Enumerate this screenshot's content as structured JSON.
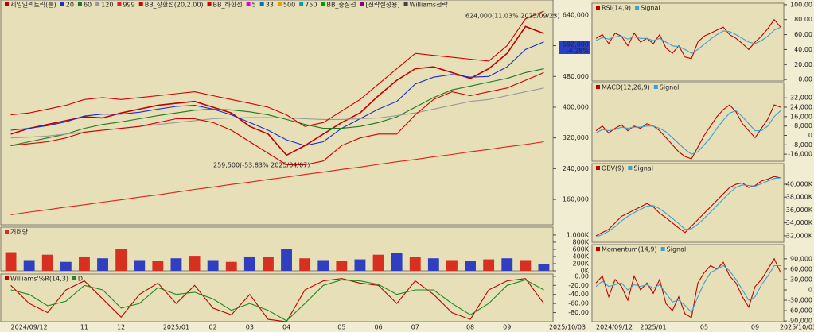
{
  "chart_data": [
    {
      "type": "line",
      "series": [
        {
          "name": "제일일렉트릭(틀)",
          "color": "#c00000",
          "values": [
            330000,
            345000,
            355000,
            365000,
            375000,
            372000,
            385000,
            395000,
            405000,
            410000,
            415000,
            400000,
            385000,
            350000,
            330000,
            275000,
            300000,
            330000,
            360000,
            385000,
            430000,
            470000,
            500000,
            505000,
            490000,
            475000,
            500000,
            540000,
            610000,
            592000
          ]
        },
        {
          "name": "20",
          "color": "#1a2fc8",
          "values": [
            340000,
            345000,
            352000,
            362000,
            377000,
            382000,
            382000,
            387000,
            395000,
            402000,
            405000,
            395000,
            380000,
            360000,
            340000,
            315000,
            300000,
            310000,
            345000,
            370000,
            395000,
            415000,
            460000,
            478000,
            485000,
            478000,
            480000,
            505000,
            550000,
            570000
          ]
        },
        {
          "name": "60",
          "color": "#1f7a1f",
          "values": [
            300000,
            310000,
            320000,
            330000,
            345000,
            355000,
            362000,
            370000,
            378000,
            385000,
            392000,
            395000,
            393000,
            388000,
            380000,
            368000,
            355000,
            345000,
            345000,
            350000,
            360000,
            375000,
            400000,
            425000,
            445000,
            455000,
            465000,
            475000,
            490000,
            500000
          ]
        },
        {
          "name": "120",
          "color": "#9a9a9a",
          "values": [
            320000,
            322000,
            325000,
            330000,
            335000,
            340000,
            345000,
            350000,
            355000,
            360000,
            365000,
            370000,
            372000,
            373000,
            373000,
            372000,
            370000,
            368000,
            368000,
            370000,
            372000,
            378000,
            385000,
            395000,
            405000,
            415000,
            420000,
            430000,
            440000,
            450000
          ]
        },
        {
          "name": "999",
          "color": "#e02020",
          "values": [
            120000,
            127000,
            133000,
            140000,
            146000,
            153000,
            159000,
            166000,
            172000,
            179000,
            186000,
            192000,
            199000,
            205000,
            212000,
            218000,
            225000,
            231000,
            238000,
            244000,
            251000,
            258000,
            264000,
            271000,
            277000,
            284000,
            290000,
            297000,
            303000,
            310000
          ]
        },
        {
          "name": "BB_상한선(20,2.00)",
          "color": "#d00000",
          "values": [
            380000,
            385000,
            395000,
            405000,
            420000,
            425000,
            420000,
            425000,
            430000,
            435000,
            440000,
            430000,
            420000,
            410000,
            400000,
            380000,
            350000,
            360000,
            390000,
            420000,
            460000,
            500000,
            540000,
            535000,
            530000,
            525000,
            520000,
            560000,
            630000,
            650000
          ]
        },
        {
          "name": "BB_하한선",
          "color": "#d00000",
          "values": [
            300000,
            305000,
            310000,
            320000,
            335000,
            340000,
            345000,
            350000,
            360000,
            370000,
            370000,
            360000,
            340000,
            310000,
            280000,
            250000,
            250000,
            260000,
            300000,
            320000,
            330000,
            330000,
            380000,
            420000,
            440000,
            430000,
            440000,
            450000,
            470000,
            490000
          ]
        }
      ],
      "legend_extra": [
        {
          "name": "5",
          "color": "#e000e0"
        },
        {
          "name": "33",
          "color": "#0070c0"
        },
        {
          "name": "500",
          "color": "#e0a000"
        },
        {
          "name": "750",
          "color": "#00a0a0"
        },
        {
          "name": "BB_중심선",
          "color": "#00a000"
        },
        {
          "name": "[전략설정용]",
          "color": "#800080"
        },
        {
          "name": "Williams전략",
          "color": "#404040"
        }
      ],
      "annotations": [
        "624,000(11.03% 2025/09/23)",
        "259,500(-53.83% 2025/04/07)"
      ],
      "price_box": [
        "592,000",
        "-4.28%"
      ],
      "ylim": [
        94000,
        679000
      ],
      "yticks": [
        {
          "value": 160000,
          "label": "160,000"
        },
        {
          "value": 240000,
          "label": "240,000"
        },
        {
          "value": 320000,
          "label": "320,000"
        },
        {
          "value": 400000,
          "label": "400,000"
        },
        {
          "value": 480000,
          "label": "480,000"
        },
        {
          "value": 560000,
          "label": "560,000"
        },
        {
          "value": 640000,
          "label": "640,000"
        }
      ]
    },
    {
      "type": "bar",
      "series": [
        {
          "name": "거래량",
          "color": "#d83020",
          "values": [
            520,
            300,
            450,
            250,
            400,
            350,
            600,
            300,
            280,
            350,
            420,
            300,
            250,
            400,
            380,
            600,
            350,
            300,
            280,
            320,
            450,
            500,
            380,
            350,
            300,
            280,
            320,
            350,
            300,
            200
          ]
        }
      ],
      "ylim": [
        0,
        1220
      ],
      "yticks": [
        {
          "value": 0,
          "label": "0K"
        },
        {
          "value": 200,
          "label": "200K"
        },
        {
          "value": 400,
          "label": "400K"
        },
        {
          "value": 600,
          "label": "600K"
        },
        {
          "value": 800,
          "label": "800K"
        },
        {
          "value": 1000,
          "label": "1,000K"
        }
      ]
    },
    {
      "type": "line",
      "series": [
        {
          "name": "Williams'%R(14,3)",
          "color": "#c00000",
          "values": [
            -20,
            -60,
            -80,
            -30,
            -10,
            -50,
            -90,
            -40,
            -15,
            -60,
            -20,
            -70,
            -85,
            -40,
            -95,
            -100,
            -30,
            -10,
            -5,
            -15,
            -20,
            -60,
            -10,
            -40,
            -80,
            -95,
            -30,
            -10,
            -5,
            -60
          ]
        },
        {
          "name": "D",
          "color": "#1f8a1f",
          "values": [
            -30,
            -40,
            -65,
            -55,
            -20,
            -30,
            -70,
            -60,
            -25,
            -40,
            -35,
            -50,
            -75,
            -60,
            -75,
            -98,
            -60,
            -20,
            -8,
            -10,
            -18,
            -40,
            -30,
            -30,
            -60,
            -85,
            -60,
            -20,
            -8,
            -30
          ]
        }
      ],
      "categories": [
        "2024/09/12",
        null,
        null,
        null,
        "11",
        null,
        "12",
        null,
        null,
        "2025/01",
        null,
        "02",
        null,
        "03",
        null,
        "04",
        null,
        null,
        "05",
        null,
        "06",
        null,
        "07",
        null,
        null,
        "08",
        null,
        "09",
        null,
        "2025/10/03"
      ],
      "ylim": [
        -100,
        5
      ],
      "yticks": [
        {
          "value": -80,
          "label": "-80.00"
        },
        {
          "value": -60,
          "label": "-60.00"
        },
        {
          "value": -40,
          "label": "-40.00"
        },
        {
          "value": -20,
          "label": "-20.00"
        },
        {
          "value": 0,
          "label": "0.00"
        }
      ]
    },
    {
      "type": "line",
      "series": [
        {
          "name": "RSI(14,9)",
          "color": "#c00000",
          "values": [
            55,
            60,
            48,
            62,
            58,
            45,
            62,
            50,
            55,
            48,
            60,
            42,
            35,
            45,
            30,
            28,
            50,
            58,
            62,
            66,
            70,
            60,
            55,
            48,
            40,
            50,
            58,
            68,
            80,
            70
          ]
        },
        {
          "name": "Signal",
          "color": "#3aa0d0",
          "values": [
            52,
            56,
            54,
            57,
            58,
            54,
            57,
            55,
            55,
            52,
            55,
            50,
            45,
            44,
            40,
            35,
            40,
            47,
            54,
            60,
            65,
            64,
            60,
            55,
            50,
            48,
            52,
            58,
            66,
            70
          ]
        }
      ],
      "ylim": [
        -2,
        102
      ],
      "yticks": [
        {
          "value": 0,
          "label": "0.00"
        },
        {
          "value": 20,
          "label": "20.00"
        },
        {
          "value": 40,
          "label": "40.00"
        },
        {
          "value": 60,
          "label": "60.00"
        },
        {
          "value": 80,
          "label": "80.00"
        },
        {
          "value": 100,
          "label": "100.00"
        }
      ]
    },
    {
      "type": "line",
      "series": [
        {
          "name": "MACD(12,26,9)",
          "color": "#c00000",
          "values": [
            4000,
            8000,
            2000,
            6000,
            9000,
            4000,
            8000,
            6000,
            10000,
            8000,
            4000,
            -2000,
            -8000,
            -14000,
            -18000,
            -20000,
            -10000,
            0,
            8000,
            16000,
            22000,
            26000,
            20000,
            10000,
            4000,
            -2000,
            6000,
            14000,
            26000,
            24000
          ]
        },
        {
          "name": "Signal",
          "color": "#3aa0d0",
          "values": [
            2000,
            5000,
            4000,
            5000,
            7000,
            6000,
            7000,
            7000,
            8000,
            8000,
            6000,
            3000,
            -2000,
            -7000,
            -12000,
            -16000,
            -14000,
            -8000,
            -2000,
            6000,
            13000,
            19000,
            21000,
            16000,
            10000,
            4000,
            4000,
            8000,
            16000,
            21000
          ]
        }
      ],
      "ylim": [
        -22000,
        45000
      ],
      "yticks": [
        {
          "value": -16000,
          "label": "-16,000"
        },
        {
          "value": -8000,
          "label": "-8,000"
        },
        0,
        {
          "value": 8000,
          "label": "8,000"
        },
        {
          "value": 16000,
          "label": "16,000"
        },
        {
          "value": 24000,
          "label": "24,000"
        },
        {
          "value": 32000,
          "label": "32,000"
        }
      ]
    },
    {
      "type": "line",
      "series": [
        {
          "name": "OBV(9)",
          "color": "#c00000",
          "values": [
            32000,
            32500,
            33000,
            34000,
            35000,
            35500,
            36000,
            36500,
            37000,
            36500,
            35500,
            34800,
            34000,
            33200,
            32500,
            33500,
            34500,
            35500,
            36500,
            37500,
            38500,
            39500,
            40000,
            40200,
            39500,
            39800,
            40500,
            40800,
            41200,
            41000
          ]
        },
        {
          "name": "Signal",
          "color": "#3aa0d0",
          "values": [
            31800,
            32200,
            32700,
            33400,
            34300,
            35000,
            35600,
            36100,
            36600,
            36700,
            36200,
            35500,
            34700,
            33900,
            33000,
            33100,
            33800,
            34700,
            35700,
            36700,
            37700,
            38700,
            39500,
            39900,
            39800,
            39700,
            40100,
            40500,
            40900,
            41000
          ]
        }
      ],
      "ylim": [
        31000,
        43200
      ],
      "yticks": [
        {
          "value": 32000,
          "label": "32,000K"
        },
        {
          "value": 34000,
          "label": "34,000K"
        },
        {
          "value": 36000,
          "label": "36,000K"
        },
        {
          "value": 38000,
          "label": "38,000K"
        },
        {
          "value": 40000,
          "label": "40,000K"
        }
      ]
    },
    {
      "type": "line",
      "series": [
        {
          "name": "Momentum(14,9)",
          "color": "#c00000",
          "values": [
            20000,
            40000,
            -20000,
            30000,
            10000,
            -30000,
            40000,
            0,
            20000,
            -10000,
            30000,
            -40000,
            -60000,
            -20000,
            -70000,
            -80000,
            20000,
            50000,
            70000,
            60000,
            80000,
            40000,
            20000,
            -20000,
            -50000,
            10000,
            30000,
            60000,
            90000,
            50000
          ]
        },
        {
          "name": "Signal",
          "color": "#3aa0d0",
          "values": [
            10000,
            25000,
            10000,
            15000,
            20000,
            0,
            15000,
            10000,
            15000,
            5000,
            15000,
            -10000,
            -35000,
            -30000,
            -45000,
            -65000,
            -20000,
            20000,
            50000,
            60000,
            70000,
            55000,
            30000,
            0,
            -30000,
            -20000,
            15000,
            40000,
            70000,
            70000
          ]
        }
      ],
      "categories": [
        "2024/09/12",
        null,
        null,
        null,
        null,
        null,
        null,
        null,
        null,
        "2025/01",
        null,
        null,
        null,
        null,
        null,
        null,
        null,
        "05",
        null,
        null,
        null,
        null,
        null,
        null,
        null,
        "09",
        null,
        null,
        null,
        "2025/10/03"
      ],
      "ylim": [
        -92000,
        131000
      ],
      "yticks": [
        {
          "value": -90000,
          "label": "-90,000"
        },
        {
          "value": -60000,
          "label": "-60,000"
        },
        {
          "value": -30000,
          "label": "-30,000"
        },
        0,
        {
          "value": 30000,
          "label": "30,000"
        },
        {
          "value": 60000,
          "label": "60,000"
        },
        {
          "value": 90000,
          "label": "90,000"
        }
      ]
    }
  ]
}
